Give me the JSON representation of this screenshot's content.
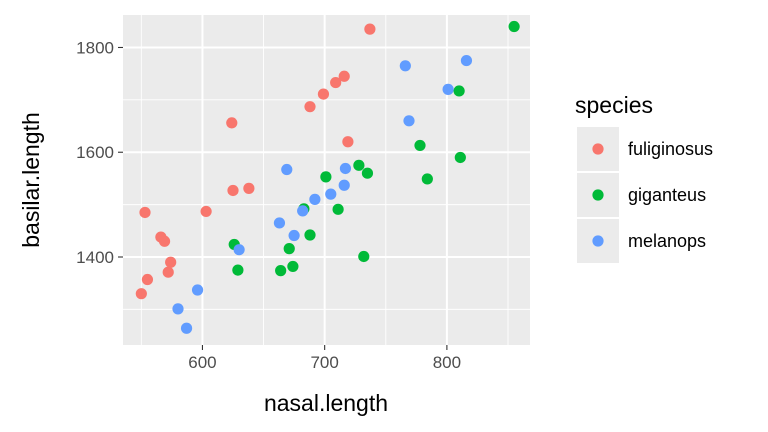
{
  "chart_data": {
    "type": "scatter",
    "xlabel": "nasal.length",
    "ylabel": "basilar.length",
    "xlim": [
      535,
      868
    ],
    "ylim": [
      1232,
      1862
    ],
    "x_ticks": [
      600,
      700,
      800
    ],
    "y_ticks": [
      1400,
      1600,
      1800
    ],
    "grid": true,
    "legend": {
      "title": "species",
      "position": "right"
    },
    "series": [
      {
        "name": "fuliginosus",
        "color": "#F8766D",
        "points": [
          {
            "x": 550,
            "y": 1330
          },
          {
            "x": 553,
            "y": 1485
          },
          {
            "x": 555,
            "y": 1357
          },
          {
            "x": 566,
            "y": 1438
          },
          {
            "x": 569,
            "y": 1430
          },
          {
            "x": 572,
            "y": 1371
          },
          {
            "x": 574,
            "y": 1390
          },
          {
            "x": 603,
            "y": 1487
          },
          {
            "x": 624,
            "y": 1656
          },
          {
            "x": 625,
            "y": 1527
          },
          {
            "x": 638,
            "y": 1531
          },
          {
            "x": 688,
            "y": 1687
          },
          {
            "x": 699,
            "y": 1711
          },
          {
            "x": 709,
            "y": 1733
          },
          {
            "x": 716,
            "y": 1745
          },
          {
            "x": 719,
            "y": 1620
          },
          {
            "x": 737,
            "y": 1835
          }
        ]
      },
      {
        "name": "giganteus",
        "color": "#00BA38",
        "points": [
          {
            "x": 626,
            "y": 1424
          },
          {
            "x": 629,
            "y": 1375
          },
          {
            "x": 664,
            "y": 1374
          },
          {
            "x": 671,
            "y": 1416
          },
          {
            "x": 674,
            "y": 1382
          },
          {
            "x": 683,
            "y": 1492
          },
          {
            "x": 688,
            "y": 1442
          },
          {
            "x": 701,
            "y": 1553
          },
          {
            "x": 711,
            "y": 1491
          },
          {
            "x": 728,
            "y": 1575
          },
          {
            "x": 732,
            "y": 1401
          },
          {
            "x": 735,
            "y": 1560
          },
          {
            "x": 778,
            "y": 1613
          },
          {
            "x": 784,
            "y": 1549
          },
          {
            "x": 810,
            "y": 1717
          },
          {
            "x": 811,
            "y": 1590
          },
          {
            "x": 855,
            "y": 1840
          }
        ]
      },
      {
        "name": "melanops",
        "color": "#619CFF",
        "points": [
          {
            "x": 580,
            "y": 1301
          },
          {
            "x": 587,
            "y": 1264
          },
          {
            "x": 596,
            "y": 1337
          },
          {
            "x": 630,
            "y": 1414
          },
          {
            "x": 663,
            "y": 1465
          },
          {
            "x": 669,
            "y": 1567
          },
          {
            "x": 675,
            "y": 1441
          },
          {
            "x": 682,
            "y": 1488
          },
          {
            "x": 692,
            "y": 1510
          },
          {
            "x": 705,
            "y": 1520
          },
          {
            "x": 716,
            "y": 1537
          },
          {
            "x": 717,
            "y": 1569
          },
          {
            "x": 766,
            "y": 1765
          },
          {
            "x": 769,
            "y": 1660
          },
          {
            "x": 801,
            "y": 1720
          },
          {
            "x": 816,
            "y": 1775
          }
        ]
      }
    ]
  }
}
